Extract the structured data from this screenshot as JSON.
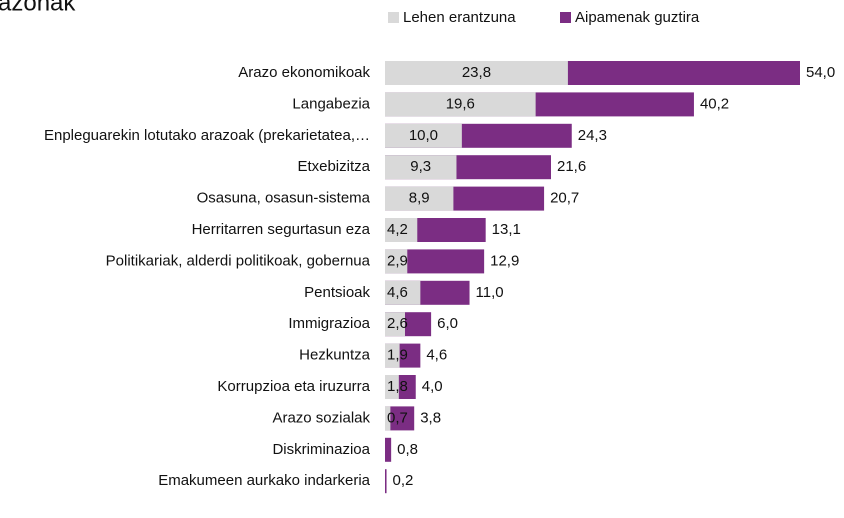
{
  "chart_data": {
    "type": "bar",
    "orientation": "horizontal",
    "title": "azonak",
    "categories": [
      "Arazo ekonomikoak",
      "Langabezia",
      "Enpleguarekin lotutako arazoak (prekarietatea,…",
      "Etxebizitza",
      "Osasuna, osasun-sistema",
      "Herritarren segurtasun eza",
      "Politikariak, alderdi politikoak, gobernua",
      "Pentsioak",
      "Immigrazioa",
      "Hezkuntza",
      "Korrupzioa eta iruzurra",
      "Arazo sozialak",
      "Diskriminazioa",
      "Emakumeen aurkako indarkeria"
    ],
    "series": [
      {
        "name": "Lehen erantzuna",
        "color": "#d9d9d9",
        "values": [
          23.8,
          19.6,
          10.0,
          9.3,
          8.9,
          4.2,
          2.9,
          4.6,
          2.6,
          1.9,
          1.8,
          0.7,
          null,
          null
        ],
        "value_labels": [
          "23,8",
          "19,6",
          "10,0",
          "9,3",
          "8,9",
          "4,2",
          "2,9",
          "4,6",
          "2,6",
          "1,9",
          "1,8",
          "0,7",
          null,
          null
        ]
      },
      {
        "name": "Aipamenak guztira",
        "color": "#7b2d83",
        "values": [
          54.0,
          40.2,
          24.3,
          21.6,
          20.7,
          13.1,
          12.9,
          11.0,
          6.0,
          4.6,
          4.0,
          3.8,
          0.8,
          0.2
        ],
        "value_labels": [
          "54,0",
          "40,2",
          "24,3",
          "21,6",
          "20,7",
          "13,1",
          "12,9",
          "11,0",
          "6,0",
          "4,6",
          "4,0",
          "3,8",
          "0,8",
          "0,2"
        ]
      }
    ],
    "overlap": true,
    "legend": "top"
  }
}
